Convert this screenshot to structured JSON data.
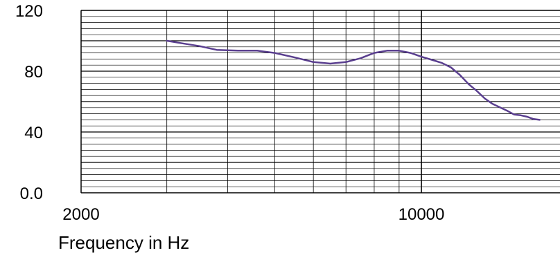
{
  "chart_data": {
    "type": "line",
    "title": "",
    "xlabel": "Frequency in Hz",
    "ylabel": "",
    "x_scale": "log",
    "xlim": [
      2000,
      20000
    ],
    "ylim": [
      0,
      120
    ],
    "y_ticks": [
      {
        "value": 0,
        "label": "0.0"
      },
      {
        "value": 40,
        "label": "40"
      },
      {
        "value": 80,
        "label": "80"
      },
      {
        "value": 120,
        "label": "120"
      }
    ],
    "x_ticks": [
      {
        "value": 2000,
        "label": "2000"
      },
      {
        "value": 10000,
        "label": "10000"
      }
    ],
    "grid": true,
    "line_color": "#5a3f8f",
    "series": [
      {
        "points": [
          [
            3000,
            100
          ],
          [
            3200,
            98.5
          ],
          [
            3500,
            96.5
          ],
          [
            3800,
            94
          ],
          [
            4200,
            93.5
          ],
          [
            4600,
            93.5
          ],
          [
            5000,
            92
          ],
          [
            5500,
            89
          ],
          [
            6000,
            86
          ],
          [
            6500,
            85
          ],
          [
            7000,
            86
          ],
          [
            7500,
            88.5
          ],
          [
            8000,
            92
          ],
          [
            8500,
            93.5
          ],
          [
            9000,
            93.5
          ],
          [
            9500,
            92
          ],
          [
            10000,
            89.5
          ],
          [
            10500,
            87.5
          ],
          [
            11000,
            85.5
          ],
          [
            11500,
            82.5
          ],
          [
            12000,
            77.5
          ],
          [
            12500,
            71.5
          ],
          [
            13000,
            67
          ],
          [
            13500,
            62
          ],
          [
            14000,
            58.5
          ],
          [
            15000,
            54
          ],
          [
            15500,
            51.5
          ],
          [
            16000,
            51
          ],
          [
            16500,
            50
          ],
          [
            17000,
            48.5
          ],
          [
            17500,
            48
          ]
        ]
      }
    ]
  }
}
